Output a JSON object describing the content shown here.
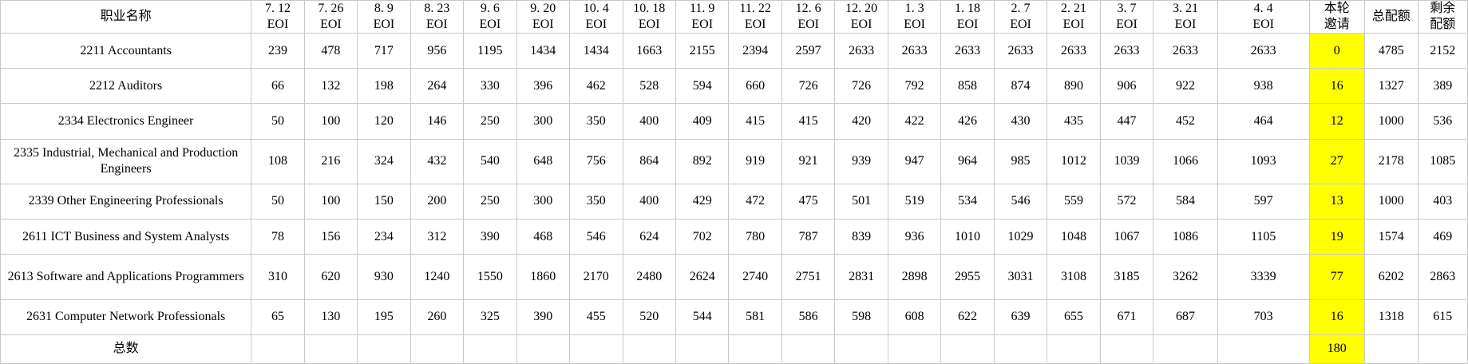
{
  "table": {
    "header": {
      "occupation": "职业名称",
      "eoi_label": "EOI",
      "dates": [
        "7. 12",
        "7. 26",
        "8. 9",
        "8. 23",
        "9. 6",
        "9. 20",
        "10. 4",
        "10. 18",
        "11. 9",
        "11. 22",
        "12. 6",
        "12. 20",
        "1. 3",
        "1. 18",
        "2. 7",
        "2. 21",
        "3. 7",
        "3. 21",
        "4. 4"
      ],
      "invite_line1": "本轮",
      "invite_line2": "邀请",
      "total_quota": "总配额",
      "remaining_line1": "剩余",
      "remaining_line2": "配额"
    },
    "rows": [
      {
        "name": "2211 Accountants",
        "eoi": [
          239,
          478,
          717,
          956,
          1195,
          1434,
          1434,
          1663,
          2155,
          2394,
          2597,
          2633,
          2633,
          2633,
          2633,
          2633,
          2633,
          2633,
          2633
        ],
        "invite": 0,
        "total_quota": 4785,
        "remaining": 2152
      },
      {
        "name": "2212 Auditors",
        "eoi": [
          66,
          132,
          198,
          264,
          330,
          396,
          462,
          528,
          594,
          660,
          726,
          726,
          792,
          858,
          874,
          890,
          906,
          922,
          938
        ],
        "invite": 16,
        "total_quota": 1327,
        "remaining": 389
      },
      {
        "name": "2334 Electronics Engineer",
        "eoi": [
          50,
          100,
          120,
          146,
          250,
          300,
          350,
          400,
          409,
          415,
          415,
          420,
          422,
          426,
          430,
          435,
          447,
          452,
          464
        ],
        "invite": 12,
        "total_quota": 1000,
        "remaining": 536
      },
      {
        "name": "2335 Industrial, Mechanical and Production Engineers",
        "eoi": [
          108,
          216,
          324,
          432,
          540,
          648,
          756,
          864,
          892,
          919,
          921,
          939,
          947,
          964,
          985,
          1012,
          1039,
          1066,
          1093
        ],
        "invite": 27,
        "total_quota": 2178,
        "remaining": 1085
      },
      {
        "name": "2339 Other Engineering Professionals",
        "eoi": [
          50,
          100,
          150,
          200,
          250,
          300,
          350,
          400,
          429,
          472,
          475,
          501,
          519,
          534,
          546,
          559,
          572,
          584,
          597
        ],
        "invite": 13,
        "total_quota": 1000,
        "remaining": 403
      },
      {
        "name": "2611 ICT Business and System Analysts",
        "eoi": [
          78,
          156,
          234,
          312,
          390,
          468,
          546,
          624,
          702,
          780,
          787,
          839,
          936,
          1010,
          1029,
          1048,
          1067,
          1086,
          1105
        ],
        "invite": 19,
        "total_quota": 1574,
        "remaining": 469
      },
      {
        "name": "2613 Software and Applications Programmers",
        "eoi": [
          310,
          620,
          930,
          1240,
          1550,
          1860,
          2170,
          2480,
          2624,
          2740,
          2751,
          2831,
          2898,
          2955,
          3031,
          3108,
          3185,
          3262,
          3339
        ],
        "invite": 77,
        "total_quota": 6202,
        "remaining": 2863
      },
      {
        "name": "2631 Computer Network Professionals",
        "eoi": [
          65,
          130,
          195,
          260,
          325,
          390,
          455,
          520,
          544,
          581,
          586,
          598,
          608,
          622,
          639,
          655,
          671,
          687,
          703
        ],
        "invite": 16,
        "total_quota": 1318,
        "remaining": 615
      }
    ],
    "total_row": {
      "label": "总数",
      "invite": 180
    }
  },
  "colors": {
    "accent_red": "#ff0000",
    "highlight_yellow": "#ffff00",
    "grid_line": "#c9c9c9"
  }
}
